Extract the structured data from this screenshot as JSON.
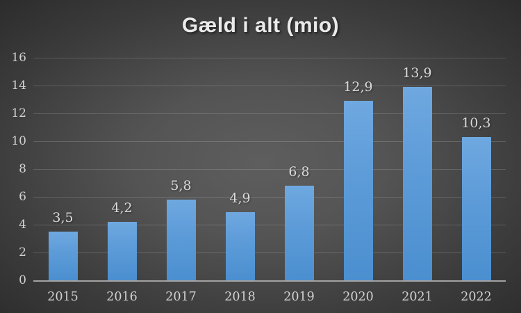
{
  "title": "Gæld i alt (mio)",
  "chart_data": {
    "type": "bar",
    "title": "Gæld i alt (mio)",
    "categories": [
      "2015",
      "2016",
      "2017",
      "2018",
      "2019",
      "2020",
      "2021",
      "2022"
    ],
    "values": [
      3.5,
      4.2,
      5.8,
      4.9,
      6.8,
      12.9,
      13.9,
      10.3
    ],
    "value_labels": [
      "3,5",
      "4,2",
      "5,8",
      "4,9",
      "6,8",
      "12,9",
      "13,9",
      "10,3"
    ],
    "decimal_separator": ",",
    "xlabel": "",
    "ylabel": "",
    "ylim": [
      0,
      16
    ],
    "ytick_step": 2,
    "ytick_labels": [
      "0",
      "2",
      "4",
      "6",
      "8",
      "10",
      "12",
      "14",
      "16"
    ],
    "grid": true,
    "legend": false,
    "series_name": "Gæld i alt",
    "colors": {
      "bar_top": "#6fa8e0",
      "bar_bottom": "#4b8fd0",
      "bar_base": "#5b9bd5",
      "background_center": "#5e5e5e",
      "background_edge": "#272727",
      "gridline": "rgba(255,255,255,0.16)",
      "axis_line": "#a2a2a2",
      "tick_label": "#d2d2d2",
      "data_label": "#dadada",
      "title": "#eaeaea"
    }
  }
}
